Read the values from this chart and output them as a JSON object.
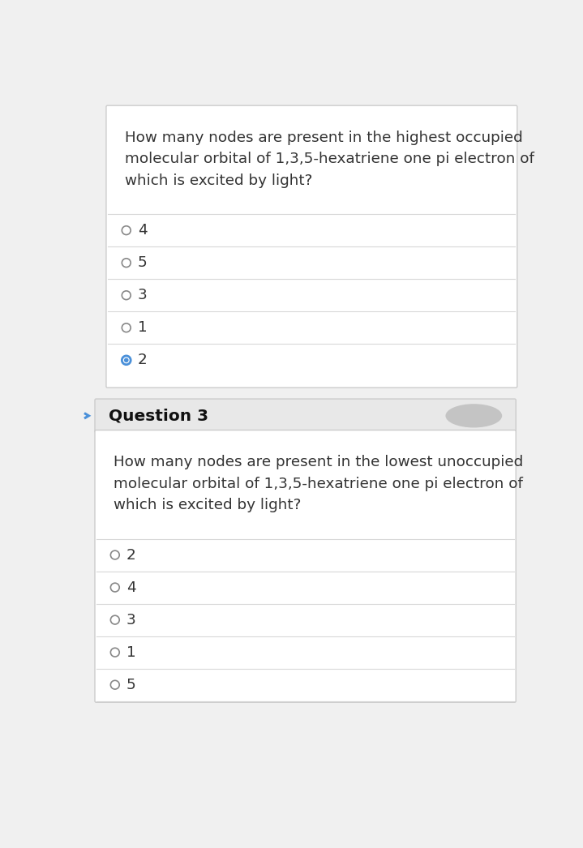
{
  "bg_color": "#f0f0f0",
  "card_bg": "#ffffff",
  "card_border": "#cccccc",
  "separator_color": "#d8d8d8",
  "text_color": "#333333",
  "q3_header_bg": "#e8e8e8",
  "q3_header_text": "#111111",
  "radio_empty_color": "#888888",
  "radio_filled_color": "#4a90d9",
  "arrow_color": "#4a90d9",
  "q1": {
    "question": "How many nodes are present in the highest occupied\nmolecular orbital of 1,3,5-hexatriene one pi electron of\nwhich is excited by light?",
    "options": [
      "4",
      "5",
      "3",
      "1",
      "2"
    ],
    "selected": 4
  },
  "q3": {
    "header": "Question 3",
    "question": "How many nodes are present in the lowest unoccupied\nmolecular orbital of 1,3,5-hexatriene one pi electron of\nwhich is excited by light?",
    "options": [
      "2",
      "4",
      "3",
      "1",
      "5"
    ],
    "selected": -1
  }
}
